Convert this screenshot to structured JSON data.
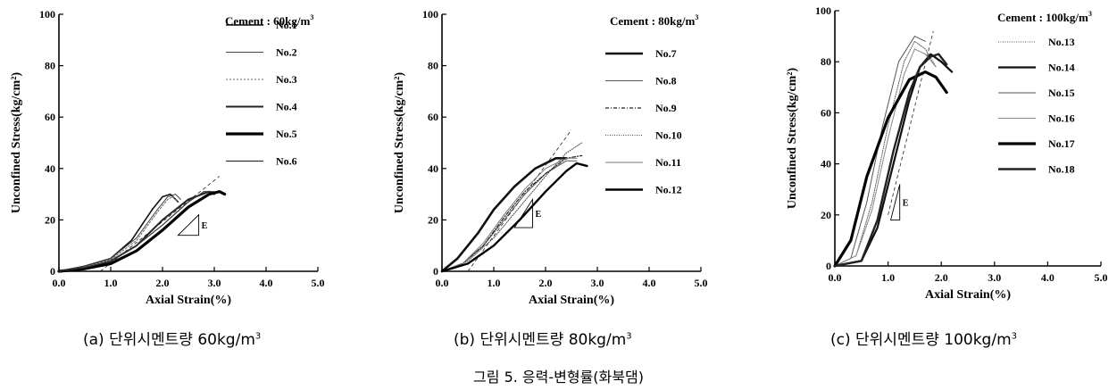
{
  "figure_caption": "그림 5. 응력-변형률(화북댐)",
  "chart_data": [
    {
      "type": "line",
      "legend_title": "Cement : 60kg/m",
      "legend_title_sup": "3",
      "xlabel": "Axial Strain(%)",
      "ylabel": "Unconfined Stress(kg/cm²)",
      "xlim": [
        0,
        5
      ],
      "ylim": [
        0,
        100
      ],
      "x_ticks": [
        "0.0",
        "1.0",
        "2.0",
        "3.0",
        "4.0",
        "5.0"
      ],
      "y_ticks": [
        "0",
        "20",
        "40",
        "60",
        "80",
        "100"
      ],
      "legend_position": "top-right",
      "grid": false,
      "caption_prefix": "(a) 단위시멘트량 60kg/m",
      "caption_sup": "3",
      "modulus_marker": "E",
      "series": [
        {
          "name": "No.1",
          "x": [
            0,
            0.5,
            1.0,
            1.4,
            1.8,
            2.0,
            2.15,
            2.3
          ],
          "y": [
            0,
            2,
            5,
            12,
            24,
            29,
            30,
            27
          ]
        },
        {
          "name": "No.2",
          "x": [
            0,
            0.5,
            1.0,
            1.5,
            1.9,
            2.1,
            2.25,
            2.35
          ],
          "y": [
            0,
            2,
            5,
            13,
            24,
            29,
            30,
            28
          ]
        },
        {
          "name": "No.3",
          "x": [
            0,
            0.5,
            1.0,
            1.5,
            1.9,
            2.1,
            2.2,
            2.3
          ],
          "y": [
            0,
            1.5,
            4.5,
            12,
            23,
            28,
            29,
            27
          ]
        },
        {
          "name": "No.4",
          "x": [
            0,
            0.5,
            1.0,
            1.5,
            2.0,
            2.5,
            2.9,
            3.0
          ],
          "y": [
            0,
            1,
            4,
            10,
            20,
            28,
            31,
            30
          ]
        },
        {
          "name": "No.5",
          "x": [
            0,
            0.5,
            1.0,
            1.5,
            2.0,
            2.5,
            2.9,
            3.1,
            3.2
          ],
          "y": [
            0,
            1,
            3,
            8,
            16,
            25,
            30,
            31,
            30
          ]
        },
        {
          "name": "No.6",
          "x": [
            0,
            0.5,
            1.0,
            1.5,
            2.0,
            2.5,
            2.8,
            3.0
          ],
          "y": [
            0,
            1.5,
            4,
            10,
            18,
            27,
            31,
            31
          ]
        }
      ],
      "style": [
        {
          "w": 1.6,
          "dash": "",
          "c": "#111"
        },
        {
          "w": 1.0,
          "dash": "",
          "c": "#444"
        },
        {
          "w": 1.0,
          "dash": "2,2",
          "c": "#666"
        },
        {
          "w": 2.0,
          "dash": "",
          "c": "#222"
        },
        {
          "w": 3.2,
          "dash": "",
          "c": "#000"
        },
        {
          "w": 1.2,
          "dash": "",
          "c": "#333"
        }
      ],
      "tangent": {
        "x": [
          0.8,
          3.1
        ],
        "y": [
          0,
          37
        ]
      },
      "triangle": {
        "x1": 2.3,
        "x2": 2.7,
        "y1": 14,
        "y2": 22
      }
    },
    {
      "type": "line",
      "legend_title": "Cement : 80kg/m",
      "legend_title_sup": "3",
      "xlabel": "Axial Strain(%)",
      "ylabel": "Unconfined Stress(kg/cm²)",
      "xlim": [
        0,
        5
      ],
      "ylim": [
        0,
        100
      ],
      "x_ticks": [
        "0.0",
        "1.0",
        "2.0",
        "3.0",
        "4.0",
        "5.0"
      ],
      "y_ticks": [
        "0",
        "20",
        "40",
        "60",
        "80",
        "100"
      ],
      "legend_position": "top-right",
      "grid": false,
      "caption_prefix": "(b) 단위시멘트량 80kg/m",
      "caption_sup": "3",
      "modulus_marker": "E",
      "series": [
        {
          "name": "No.7",
          "x": [
            0,
            0.3,
            0.7,
            1.0,
            1.4,
            1.8,
            2.2,
            2.4
          ],
          "y": [
            0,
            5,
            15,
            24,
            33,
            40,
            44,
            44
          ]
        },
        {
          "name": "No.8",
          "x": [
            0,
            0.4,
            0.8,
            1.2,
            1.6,
            2.0,
            2.4,
            2.6
          ],
          "y": [
            0,
            3,
            10,
            20,
            30,
            38,
            43,
            43
          ]
        },
        {
          "name": "No.9",
          "x": [
            0,
            0.4,
            0.8,
            1.2,
            1.6,
            2.0,
            2.4,
            2.7
          ],
          "y": [
            0,
            3,
            10,
            21,
            31,
            38,
            44,
            45
          ]
        },
        {
          "name": "No.10",
          "x": [
            0,
            0.5,
            1.0,
            1.5,
            2.0,
            2.4,
            2.7
          ],
          "y": [
            0,
            4,
            13,
            25,
            37,
            46,
            50
          ]
        },
        {
          "name": "No.11",
          "x": [
            0,
            0.4,
            0.8,
            1.2,
            1.6,
            2.0,
            2.4,
            2.6
          ],
          "y": [
            0,
            3,
            11,
            22,
            32,
            40,
            44,
            44
          ]
        },
        {
          "name": "No.12",
          "x": [
            0,
            0.5,
            1.0,
            1.5,
            2.0,
            2.4,
            2.6,
            2.8
          ],
          "y": [
            0,
            3,
            10,
            20,
            31,
            39,
            42,
            41
          ]
        }
      ],
      "style": [
        {
          "w": 2.6,
          "dash": "",
          "c": "#111"
        },
        {
          "w": 1.0,
          "dash": "",
          "c": "#555"
        },
        {
          "w": 1.2,
          "dash": "4,2,1,2",
          "c": "#222"
        },
        {
          "w": 1.0,
          "dash": "1,1.5",
          "c": "#444"
        },
        {
          "w": 1.0,
          "dash": "",
          "c": "#777"
        },
        {
          "w": 2.4,
          "dash": "",
          "c": "#000"
        }
      ],
      "tangent": {
        "x": [
          0.5,
          2.5
        ],
        "y": [
          0,
          55
        ]
      },
      "triangle": {
        "x1": 1.4,
        "x2": 1.75,
        "y1": 17,
        "y2": 28
      }
    },
    {
      "type": "line",
      "legend_title": "Cement : 100kg/m",
      "legend_title_sup": "3",
      "xlabel": "Axial Strain(%)",
      "ylabel": "Unconfined Stress(kg/cm²)",
      "xlim": [
        0,
        5
      ],
      "ylim": [
        0,
        100
      ],
      "x_ticks": [
        "0.0",
        "1.0",
        "2.0",
        "3.0",
        "4.0",
        "5.0"
      ],
      "y_ticks": [
        "0",
        "20",
        "40",
        "60",
        "80",
        "100"
      ],
      "legend_position": "top-right",
      "grid": false,
      "caption_prefix": "(c) 단위시멘트량 100kg/m",
      "caption_sup": "3",
      "modulus_marker": "E",
      "series": [
        {
          "name": "No.13",
          "x": [
            0,
            0.4,
            0.7,
            1.0,
            1.3,
            1.5,
            1.7,
            1.9
          ],
          "y": [
            0,
            4,
            25,
            55,
            80,
            88,
            85,
            78
          ]
        },
        {
          "name": "No.14",
          "x": [
            0,
            0.5,
            0.8,
            1.1,
            1.4,
            1.6,
            1.8,
            2.0,
            2.2
          ],
          "y": [
            0,
            2,
            15,
            40,
            65,
            78,
            83,
            80,
            76
          ]
        },
        {
          "name": "No.15",
          "x": [
            0,
            0.3,
            0.6,
            0.9,
            1.2,
            1.5,
            1.7
          ],
          "y": [
            0,
            3,
            25,
            55,
            80,
            90,
            88
          ]
        },
        {
          "name": "No.16",
          "x": [
            0,
            0.4,
            0.7,
            1.0,
            1.3,
            1.5,
            1.7,
            1.9
          ],
          "y": [
            0,
            4,
            22,
            50,
            75,
            85,
            83,
            78
          ]
        },
        {
          "name": "No.17",
          "x": [
            0,
            0.3,
            0.6,
            1.0,
            1.4,
            1.7,
            1.9,
            2.1
          ],
          "y": [
            0,
            10,
            35,
            58,
            73,
            76,
            74,
            68
          ]
        },
        {
          "name": "No.18",
          "x": [
            0,
            0.5,
            0.8,
            1.1,
            1.4,
            1.6,
            1.8,
            1.95,
            2.1
          ],
          "y": [
            0,
            2,
            18,
            45,
            68,
            78,
            82,
            83,
            79
          ]
        }
      ],
      "style": [
        {
          "w": 1.0,
          "dash": "1,1.5",
          "c": "#555"
        },
        {
          "w": 2.2,
          "dash": "",
          "c": "#111"
        },
        {
          "w": 1.0,
          "dash": "",
          "c": "#555"
        },
        {
          "w": 1.0,
          "dash": "",
          "c": "#888"
        },
        {
          "w": 3.2,
          "dash": "",
          "c": "#000"
        },
        {
          "w": 2.4,
          "dash": "",
          "c": "#222"
        }
      ],
      "tangent": {
        "x": [
          1.0,
          1.85
        ],
        "y": [
          20,
          92
        ]
      },
      "triangle": {
        "x1": 1.05,
        "x2": 1.22,
        "y1": 18,
        "y2": 32
      }
    }
  ]
}
